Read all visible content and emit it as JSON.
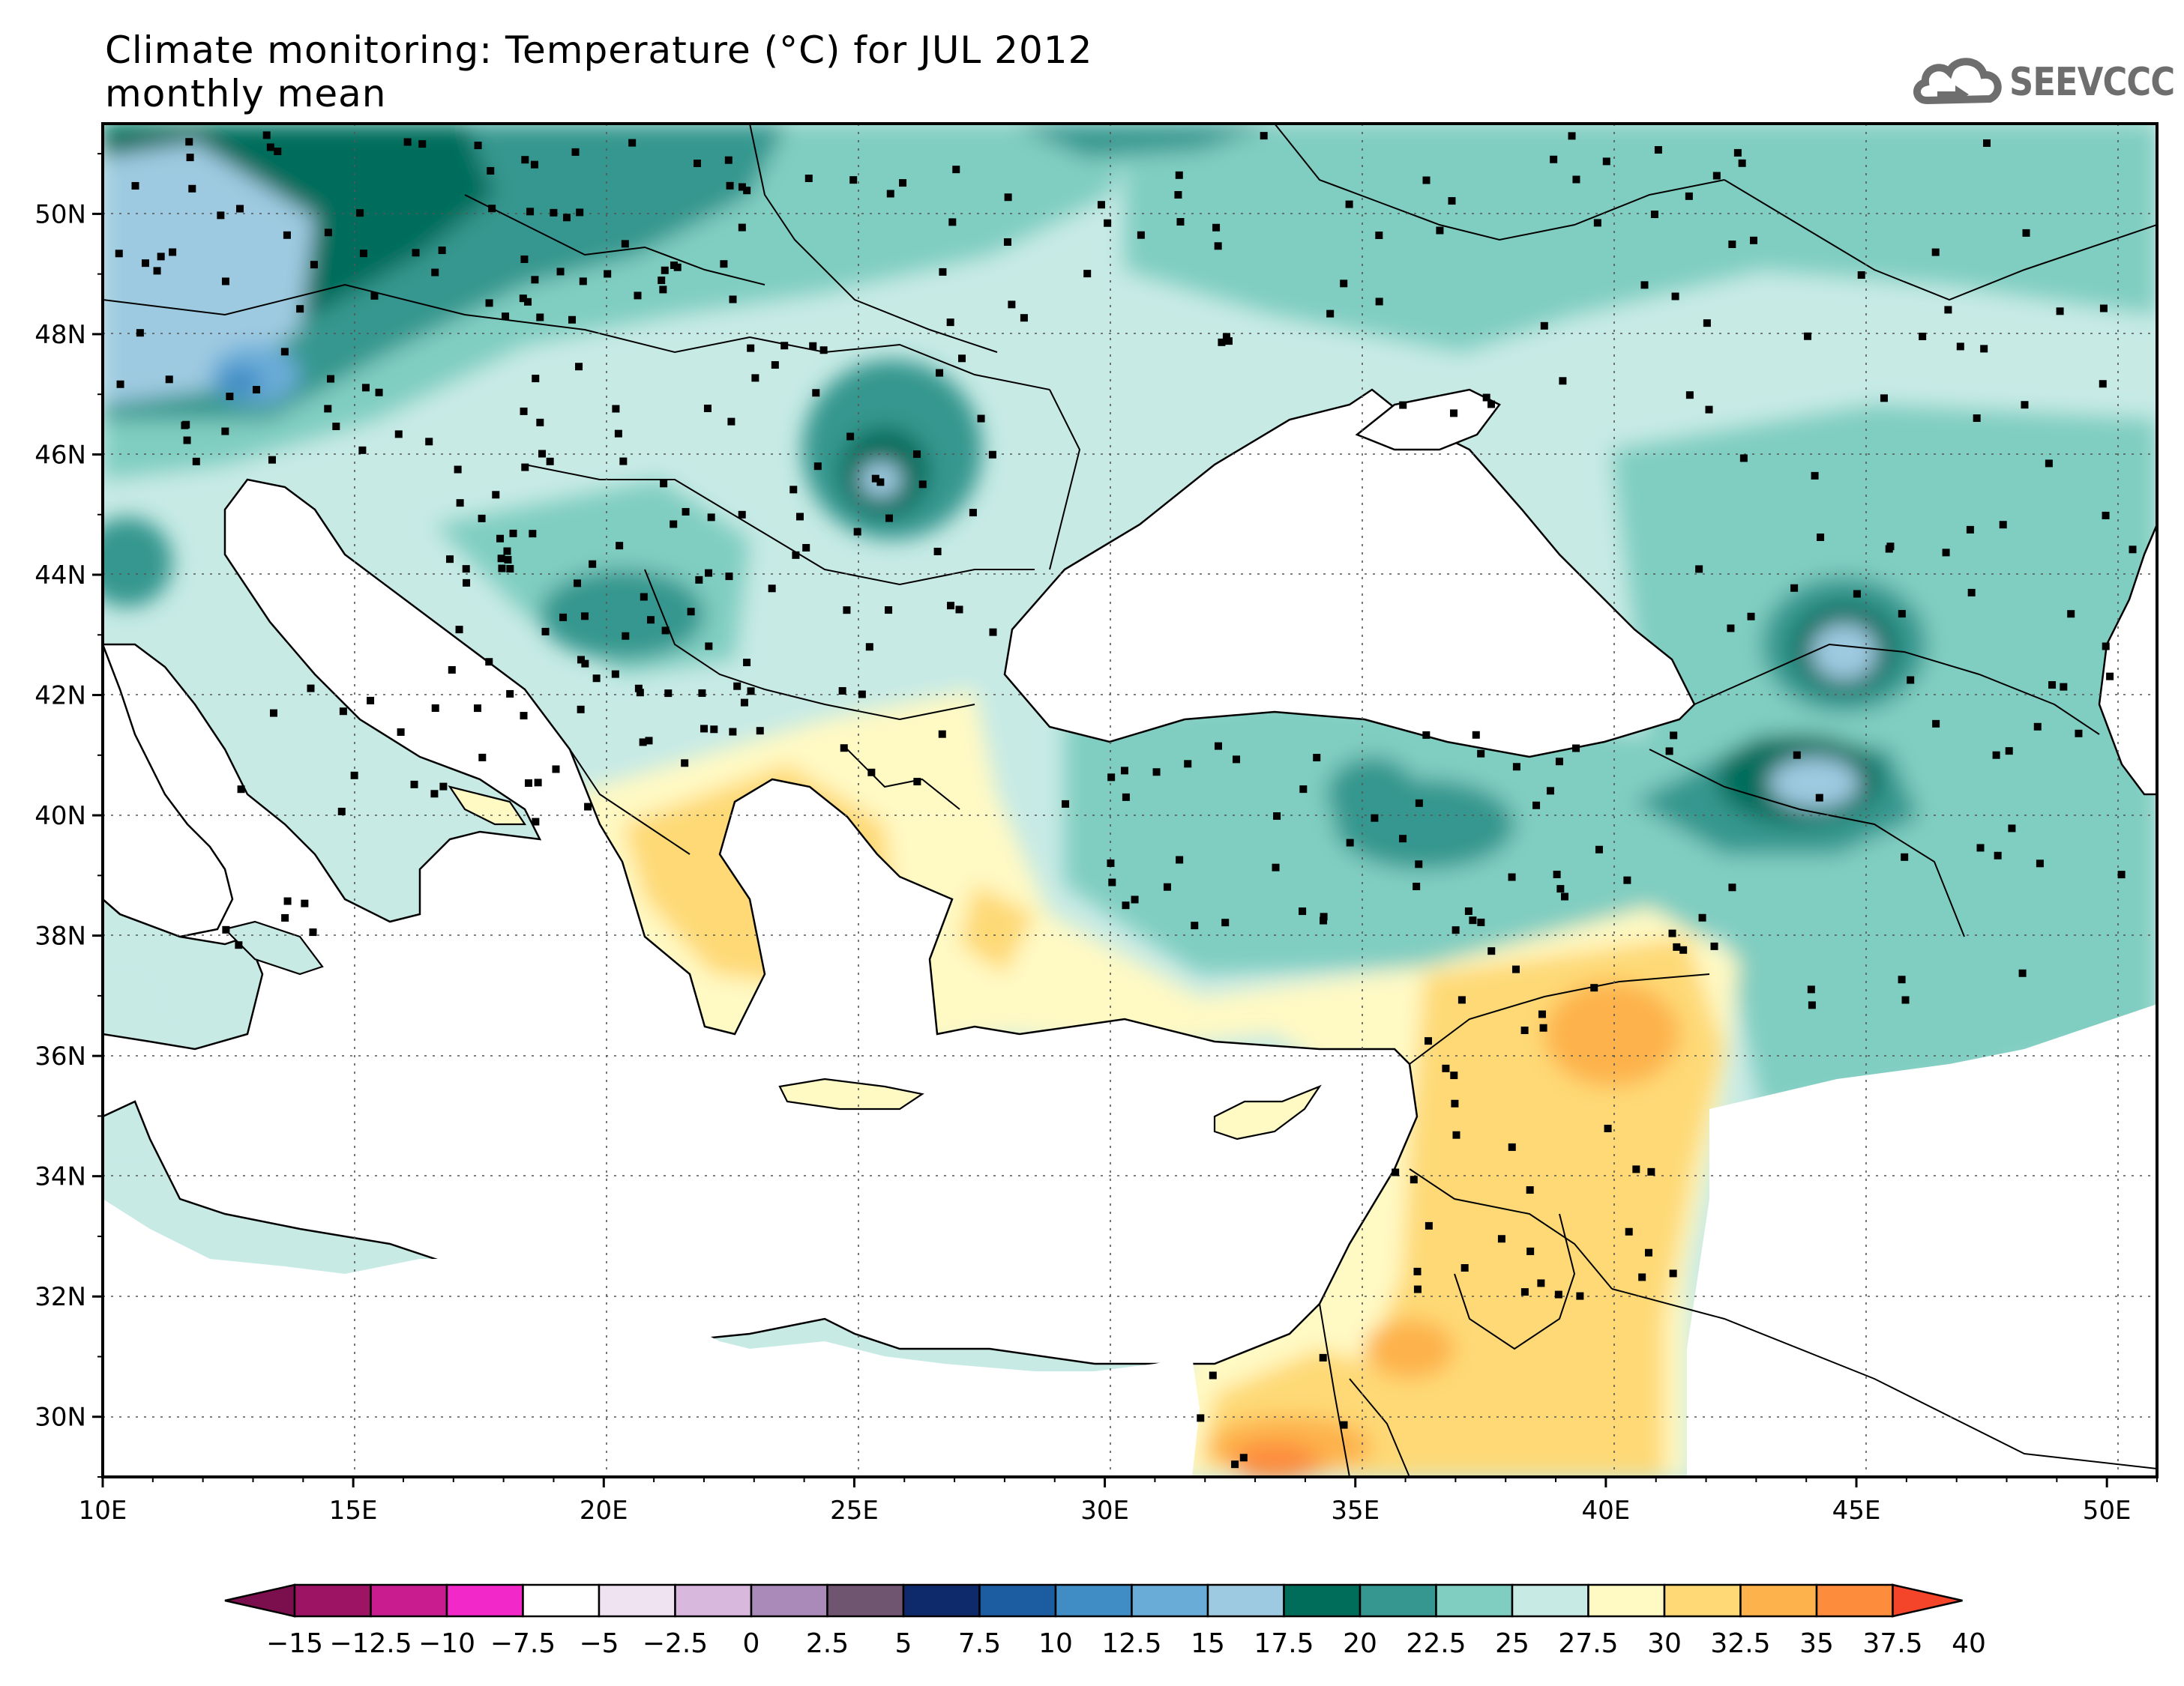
{
  "title": {
    "line1": "Climate monitoring: Temperature (°C) for JUL 2012",
    "line2": "monthly mean"
  },
  "logo": {
    "text": "SEEVCCC",
    "icon": "cloud-icon",
    "color": "#6e6e6e"
  },
  "map": {
    "lon_range": [
      10,
      51
    ],
    "lat_range": [
      29,
      51.5
    ],
    "x_ticks": [
      "10E",
      "15E",
      "20E",
      "25E",
      "30E",
      "35E",
      "40E",
      "45E",
      "50E"
    ],
    "y_ticks": [
      "30N",
      "32N",
      "34N",
      "36N",
      "38N",
      "40N",
      "42N",
      "44N",
      "46N",
      "48N",
      "50N"
    ],
    "grid": "dotted",
    "stations": "black square markers"
  },
  "colorbar": {
    "labels": [
      "-15",
      "-12.5",
      "-10",
      "-7.5",
      "-5",
      "-2.5",
      "0",
      "2.5",
      "5",
      "7.5",
      "10",
      "12.5",
      "15",
      "17.5",
      "20",
      "22.5",
      "25",
      "27.5",
      "30",
      "32.5",
      "35",
      "37.5",
      "40"
    ],
    "colors": [
      "#7b0f4e",
      "#9e1464",
      "#c91c8e",
      "#f328c8",
      "#ffffff",
      "#efe3f2",
      "#d9b8de",
      "#a98ab8",
      "#6f5570",
      "#0e2a6b",
      "#1b5da0",
      "#3f8dc4",
      "#6aacd8",
      "#9ecae1",
      "#006d5b",
      "#35978f",
      "#80cdc1",
      "#c7eae5",
      "#fff9c4",
      "#fed976",
      "#fdb24c",
      "#fd8c3c",
      "#f4452a"
    ]
  }
}
